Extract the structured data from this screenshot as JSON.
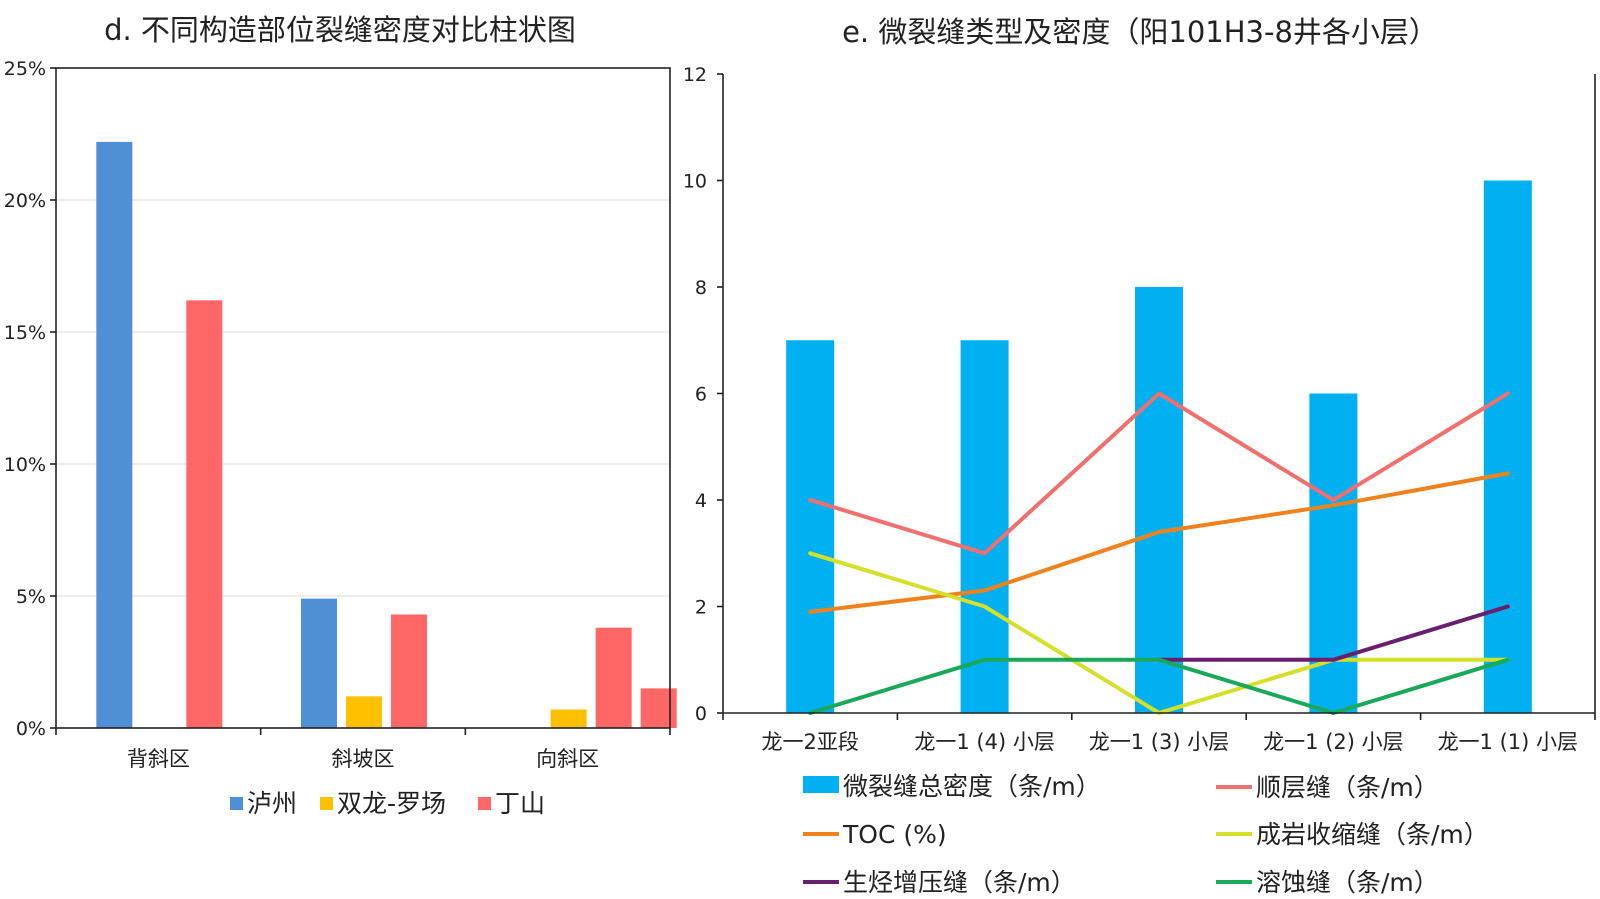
{
  "chart_data": [
    {
      "type": "bar",
      "title": "d. 不同构造部位裂缝密度对比柱状图",
      "categories": [
        "背斜区",
        "斜坡区",
        "向斜区"
      ],
      "ylim": [
        0,
        25
      ],
      "yticks": [
        0,
        5,
        10,
        15,
        20,
        25
      ],
      "ytick_labels": [
        "0%",
        "5%",
        "10%",
        "15%",
        "20%",
        "25%"
      ],
      "series": [
        {
          "name": "泸州",
          "color": "#4e8fd6",
          "values": [
            22.2,
            4.9,
            null
          ]
        },
        {
          "name": "双龙-罗场",
          "color": "#ffc000",
          "values": [
            null,
            1.2,
            0.7
          ]
        },
        {
          "name": "丁山",
          "color": "#ff6666",
          "values": [
            16.2,
            4.3,
            3.8
          ]
        }
      ],
      "extra_bar": {
        "category": "向斜区",
        "series": "丁山",
        "value": 1.5
      },
      "legend_position": "bottom"
    },
    {
      "type": "bar+line",
      "title": "e. 微裂缝类型及密度（阳101H3-8井各小层）",
      "categories": [
        "龙一2亚段",
        "龙一1 (4) 小层",
        "龙一1 (3) 小层",
        "龙一1 (2) 小层",
        "龙一1 (1) 小层"
      ],
      "ylim": [
        0,
        12
      ],
      "yticks": [
        0,
        2,
        4,
        6,
        8,
        10,
        12
      ],
      "bar_series": {
        "name": "微裂缝总密度（条/m）",
        "color": "#00b0f0",
        "values": [
          7,
          7,
          8,
          6,
          10
        ]
      },
      "line_series": [
        {
          "name": "顺层缝（条/m）",
          "color": "#f07070",
          "values": [
            4,
            3,
            6,
            4,
            6
          ]
        },
        {
          "name": "TOC (%)",
          "color": "#f0821e",
          "values": [
            1.9,
            2.3,
            3.4,
            3.9,
            4.5
          ]
        },
        {
          "name": "成岩收缩缝（条/m）",
          "color": "#d4e02a",
          "values": [
            3,
            2,
            0,
            1,
            1
          ]
        },
        {
          "name": "生烃增压缝（条/m）",
          "color": "#6a1e6e",
          "values": [
            null,
            null,
            1,
            1,
            2
          ]
        },
        {
          "name": "溶蚀缝（条/m）",
          "color": "#1aa85a",
          "values": [
            0,
            1,
            1,
            0,
            1
          ]
        }
      ],
      "legend_position": "bottom"
    }
  ]
}
